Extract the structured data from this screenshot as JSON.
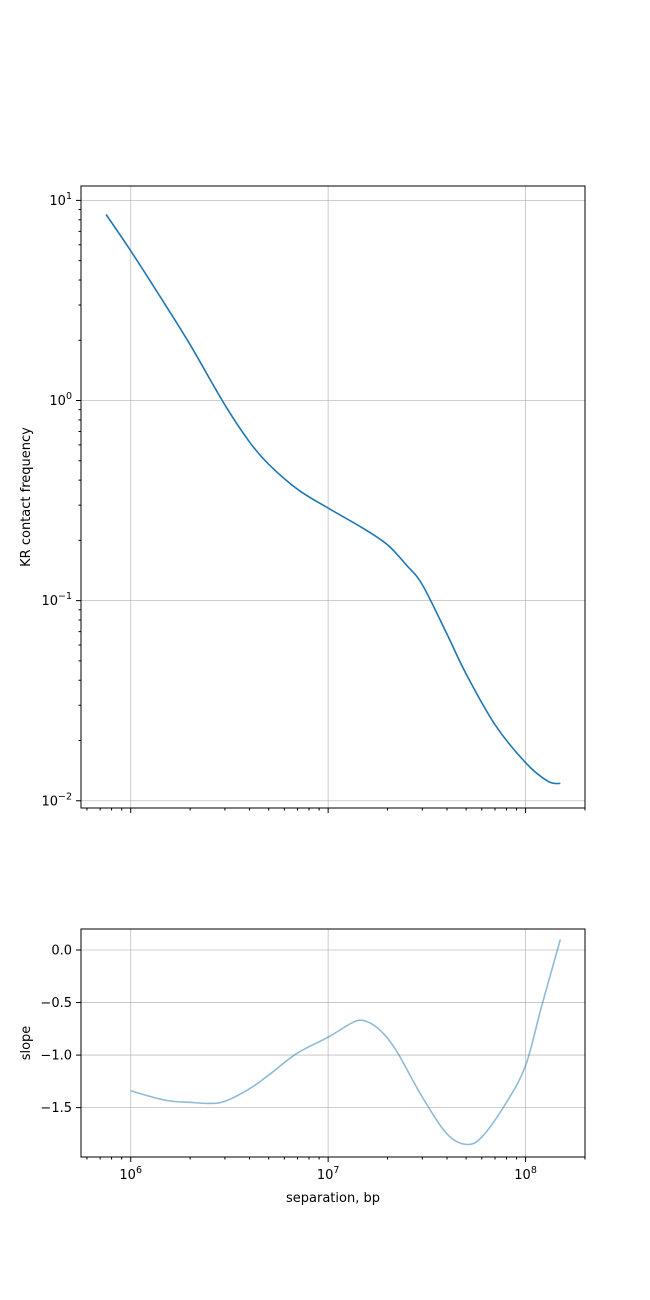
{
  "chart_data": [
    {
      "type": "line",
      "xscale": "log",
      "yscale": "log",
      "xlim": [
        560000,
        200000000
      ],
      "ylim": [
        0.0092,
        11.8
      ],
      "grid": true,
      "xlabel": "",
      "ylabel": "KR contact frequency",
      "x_ticks": [
        {
          "value": 1000000,
          "base": "10",
          "exp": "6"
        },
        {
          "value": 10000000,
          "base": "10",
          "exp": "7"
        },
        {
          "value": 100000000,
          "base": "10",
          "exp": "8"
        }
      ],
      "x_tick_labels_visible": false,
      "y_ticks": [
        {
          "value": 10,
          "base": "10",
          "exp": "1"
        },
        {
          "value": 1,
          "base": "10",
          "exp": "0"
        },
        {
          "value": 0.1,
          "base": "10",
          "exp": "−1"
        },
        {
          "value": 0.01,
          "base": "10",
          "exp": "−2"
        }
      ],
      "series": [
        {
          "color": "#1f77b4",
          "x": [
            750000,
            1000000,
            1500000,
            2000000,
            3000000,
            4000000,
            5000000,
            7000000,
            10000000,
            15000000,
            20000000,
            25000000,
            30000000,
            40000000,
            50000000,
            70000000,
            100000000,
            130000000,
            150000000
          ],
          "y": [
            8.5,
            5.6,
            3.0,
            1.9,
            0.95,
            0.62,
            0.48,
            0.36,
            0.29,
            0.23,
            0.19,
            0.15,
            0.12,
            0.068,
            0.043,
            0.024,
            0.0155,
            0.0125,
            0.0122
          ]
        }
      ]
    },
    {
      "type": "line",
      "xscale": "log",
      "yscale": "linear",
      "xlim": [
        560000,
        200000000
      ],
      "ylim": [
        -1.97,
        0.2
      ],
      "grid": true,
      "xlabel": "separation, bp",
      "ylabel": "slope",
      "x_ticks": [
        {
          "value": 1000000,
          "base": "10",
          "exp": "6"
        },
        {
          "value": 10000000,
          "base": "10",
          "exp": "7"
        },
        {
          "value": 100000000,
          "base": "10",
          "exp": "8"
        }
      ],
      "y_ticks": [
        {
          "value": 0,
          "label": "0.0"
        },
        {
          "value": -0.5,
          "label": "−0.5"
        },
        {
          "value": -1,
          "label": "−1.0"
        },
        {
          "value": -1.5,
          "label": "−1.5"
        }
      ],
      "series": [
        {
          "color": "#1f77b4",
          "opacity": 0.5,
          "x": [
            1000000,
            1500000,
            2000000,
            2500000,
            3000000,
            4000000,
            5000000,
            7000000,
            10000000,
            13000000,
            15000000,
            18000000,
            22000000,
            30000000,
            40000000,
            50000000,
            60000000,
            80000000,
            100000000,
            120000000,
            150000000
          ],
          "y": [
            -1.34,
            -1.43,
            -1.45,
            -1.46,
            -1.44,
            -1.32,
            -1.19,
            -0.98,
            -0.83,
            -0.7,
            -0.67,
            -0.75,
            -0.95,
            -1.4,
            -1.75,
            -1.85,
            -1.78,
            -1.45,
            -1.1,
            -0.55,
            0.1
          ]
        }
      ]
    }
  ]
}
